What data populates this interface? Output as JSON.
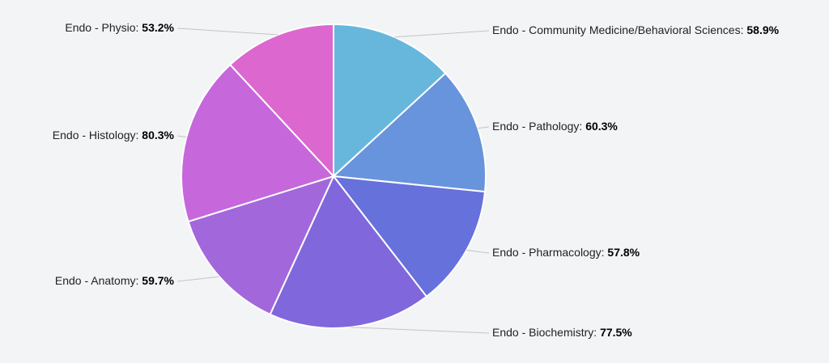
{
  "chart_data": {
    "type": "pie",
    "title": "",
    "slices": [
      {
        "category": "Endo - Community Medicine/Behavioral Sciences",
        "value": 58.9,
        "label": "58.9%",
        "color": "#67b7dc"
      },
      {
        "category": "Endo - Pathology",
        "value": 60.3,
        "label": "60.3%",
        "color": "#6794dc"
      },
      {
        "category": "Endo - Pharmacology",
        "value": 57.8,
        "label": "57.8%",
        "color": "#6771dc"
      },
      {
        "category": "Endo - Biochemistry",
        "value": 77.5,
        "label": "77.5%",
        "color": "#8067dc"
      },
      {
        "category": "Endo - Anatomy",
        "value": 59.7,
        "label": "59.7%",
        "color": "#a367dc"
      },
      {
        "category": "Endo - Histology",
        "value": 80.3,
        "label": "80.3%",
        "color": "#c767dc"
      },
      {
        "category": "Endo - Physio",
        "value": 53.2,
        "label": "53.2%",
        "color": "#dc67ce"
      }
    ],
    "legend": "none",
    "labels": "outside-with-leader-lines"
  }
}
